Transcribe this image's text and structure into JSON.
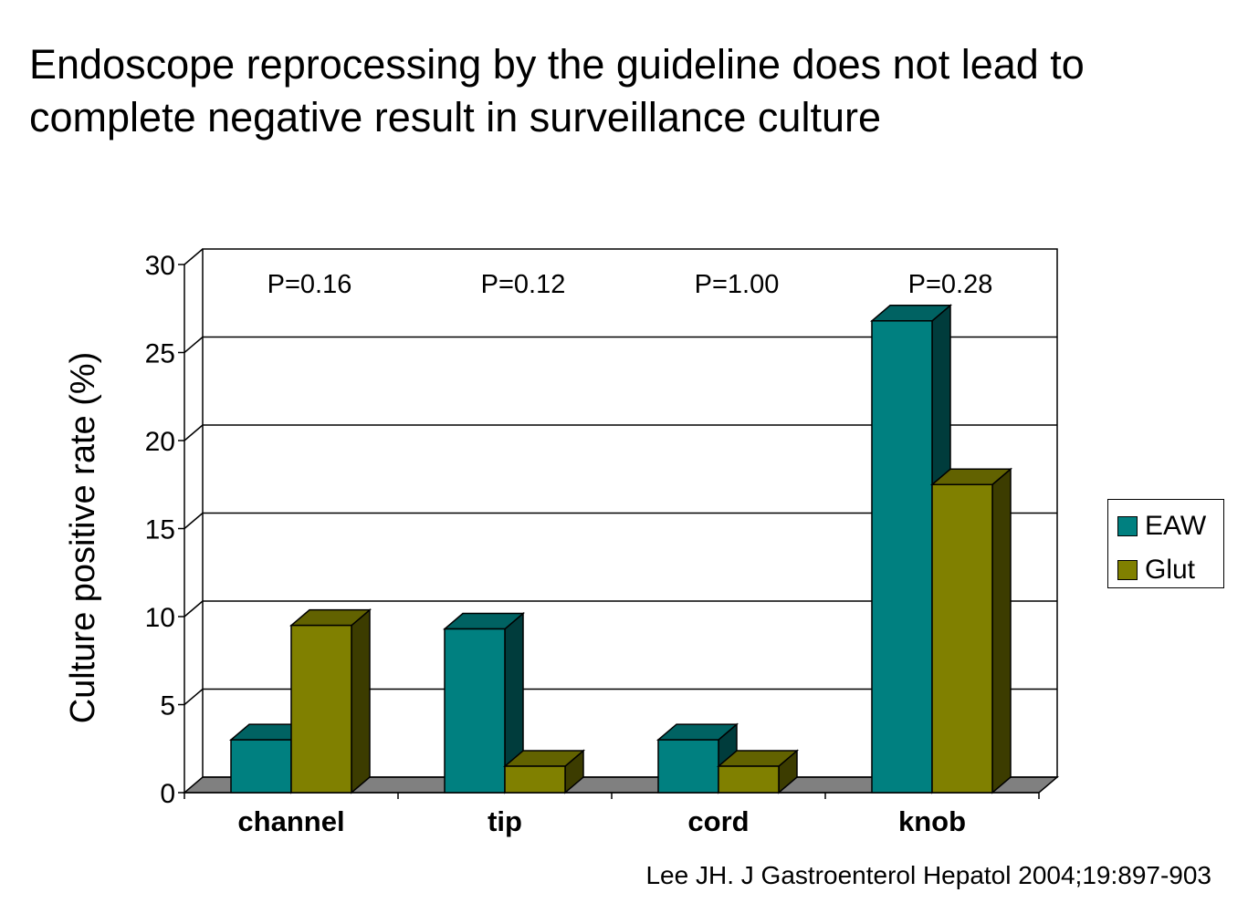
{
  "title": "Endoscope reprocessing by the guideline does not lead to\ncomplete negative result in surveillance culture",
  "source": "Lee JH. J Gastroenterol Hepatol 2004;19:897-903",
  "colors": {
    "eaw_front": "#008080",
    "eaw_top": "#006262",
    "eaw_side": "#003c3c",
    "glut_front": "#808000",
    "glut_top": "#626200",
    "glut_side": "#3c3c00",
    "floor": "#808080",
    "grid": "#000000"
  },
  "chart_data": {
    "type": "bar",
    "categories": [
      "channel",
      "tip",
      "cord",
      "knob"
    ],
    "series": [
      {
        "name": "EAW",
        "values": [
          3.0,
          9.3,
          3.0,
          26.8
        ]
      },
      {
        "name": "Glut",
        "values": [
          9.5,
          1.5,
          1.5,
          17.5
        ]
      }
    ],
    "annotations": [
      "P=0.16",
      "P=0.12",
      "P=1.00",
      "P=0.28"
    ],
    "ylabel": "Culture positive rate (%)",
    "xlabel": "",
    "ylim": [
      0,
      30
    ],
    "yticks": [
      0,
      5,
      10,
      15,
      20,
      25,
      30
    ],
    "grid": true,
    "legend": "right"
  }
}
